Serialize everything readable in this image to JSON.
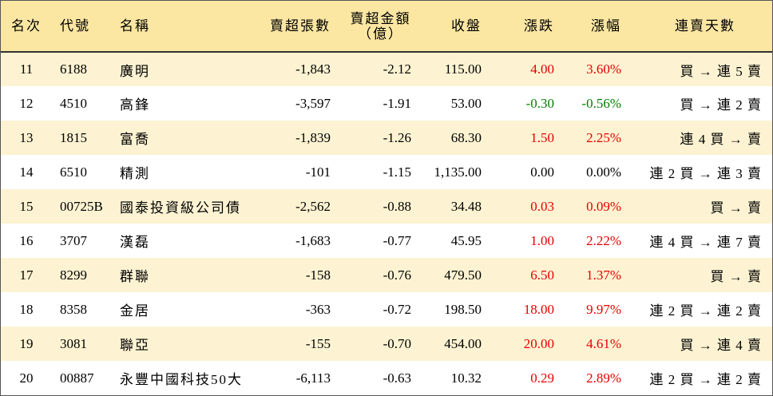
{
  "headers": {
    "rank": "名次",
    "code": "代號",
    "name": "名稱",
    "net_sell_shares": "賣超張數",
    "net_sell_amount_line1": "賣超金額",
    "net_sell_amount_line2": "（億）",
    "close": "收盤",
    "change": "漲跌",
    "change_pct": "漲幅",
    "streak": "連賣天數"
  },
  "rows": [
    {
      "rank": "11",
      "code": "6188",
      "name": "廣明",
      "shares": "-1,843",
      "amount": "-2.12",
      "close": "115.00",
      "change": "4.00",
      "pct": "3.60%",
      "streak": "買 → 連 5 賣",
      "color": "red"
    },
    {
      "rank": "12",
      "code": "4510",
      "name": "高鋒",
      "shares": "-3,597",
      "amount": "-1.91",
      "close": "53.00",
      "change": "-0.30",
      "pct": "-0.56%",
      "streak": "買 → 連 2 賣",
      "color": "green"
    },
    {
      "rank": "13",
      "code": "1815",
      "name": "富喬",
      "shares": "-1,839",
      "amount": "-1.26",
      "close": "68.30",
      "change": "1.50",
      "pct": "2.25%",
      "streak": "連 4 買 → 賣",
      "color": "red"
    },
    {
      "rank": "14",
      "code": "6510",
      "name": "精測",
      "shares": "-101",
      "amount": "-1.15",
      "close": "1,135.00",
      "change": "0.00",
      "pct": "0.00%",
      "streak": "連 2 買 → 連 3 賣",
      "color": "black"
    },
    {
      "rank": "15",
      "code": "00725B",
      "name": "國泰投資級公司債",
      "shares": "-2,562",
      "amount": "-0.88",
      "close": "34.48",
      "change": "0.03",
      "pct": "0.09%",
      "streak": "買 → 賣",
      "color": "red"
    },
    {
      "rank": "16",
      "code": "3707",
      "name": "漢磊",
      "shares": "-1,683",
      "amount": "-0.77",
      "close": "45.95",
      "change": "1.00",
      "pct": "2.22%",
      "streak": "連 4 買 → 連 7 賣",
      "color": "red"
    },
    {
      "rank": "17",
      "code": "8299",
      "name": "群聯",
      "shares": "-158",
      "amount": "-0.76",
      "close": "479.50",
      "change": "6.50",
      "pct": "1.37%",
      "streak": "買 → 賣",
      "color": "red"
    },
    {
      "rank": "18",
      "code": "8358",
      "name": "金居",
      "shares": "-363",
      "amount": "-0.72",
      "close": "198.50",
      "change": "18.00",
      "pct": "9.97%",
      "streak": "連 2 買 → 連 2 賣",
      "color": "red"
    },
    {
      "rank": "19",
      "code": "3081",
      "name": "聯亞",
      "shares": "-155",
      "amount": "-0.70",
      "close": "454.00",
      "change": "20.00",
      "pct": "4.61%",
      "streak": "買 → 連 4 賣",
      "color": "red"
    },
    {
      "rank": "20",
      "code": "00887",
      "name": "永豐中國科技50大",
      "shares": "-6,113",
      "amount": "-0.63",
      "close": "10.32",
      "change": "0.29",
      "pct": "2.89%",
      "streak": "連 2 買 → 連 2 賣",
      "color": "red"
    }
  ]
}
